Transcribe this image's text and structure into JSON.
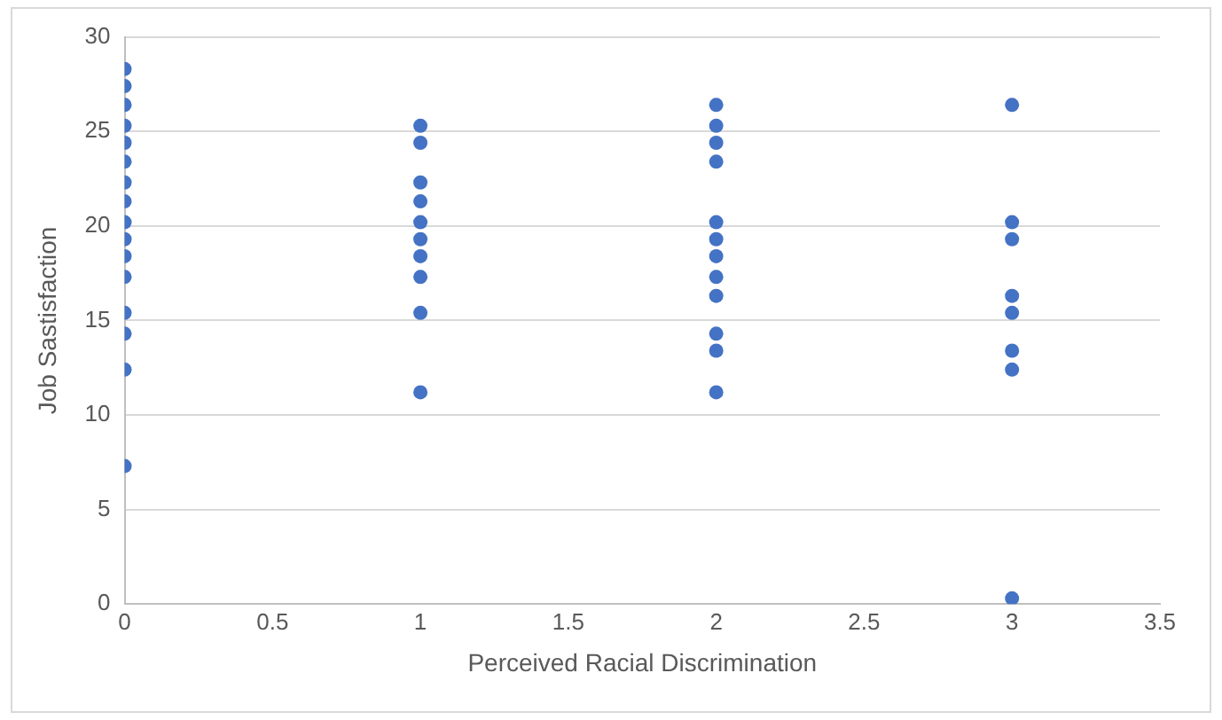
{
  "chart_data": {
    "type": "scatter",
    "xlabel": "Perceived Racial Discrimination",
    "ylabel": "Job Sastisfaction",
    "series": [
      {
        "color": "#4472c4",
        "x": [
          0,
          0,
          0,
          0,
          0,
          0,
          0,
          0,
          0,
          0,
          0,
          0,
          0,
          0,
          0,
          0,
          1,
          1,
          1,
          1,
          1,
          1,
          1,
          1,
          1,
          1,
          2,
          2,
          2,
          2,
          2,
          2,
          2,
          2,
          2,
          2,
          2,
          2,
          3,
          3,
          3,
          3,
          3,
          3,
          3,
          3
        ],
        "values": [
          28.3,
          27.4,
          26.4,
          25.3,
          24.4,
          23.4,
          22.3,
          21.3,
          20.2,
          19.3,
          18.4,
          17.3,
          15.4,
          14.3,
          12.4,
          7.3,
          25.3,
          24.4,
          22.3,
          21.3,
          20.2,
          19.3,
          18.4,
          17.3,
          15.4,
          11.2,
          26.4,
          25.3,
          24.4,
          23.4,
          20.2,
          19.3,
          18.4,
          17.3,
          16.3,
          14.3,
          13.4,
          11.2,
          26.4,
          20.2,
          19.3,
          16.3,
          15.4,
          13.4,
          12.4,
          0.3
        ]
      }
    ],
    "xlim": [
      0,
      3.5
    ],
    "xticks": [
      0,
      0.5,
      1,
      1.5,
      2,
      2.5,
      3,
      3.5
    ],
    "ylim": [
      0,
      30
    ],
    "yticks": [
      0,
      5,
      10,
      15,
      20,
      25,
      30
    ],
    "grid": "y",
    "legend": false,
    "marker": "circle"
  }
}
